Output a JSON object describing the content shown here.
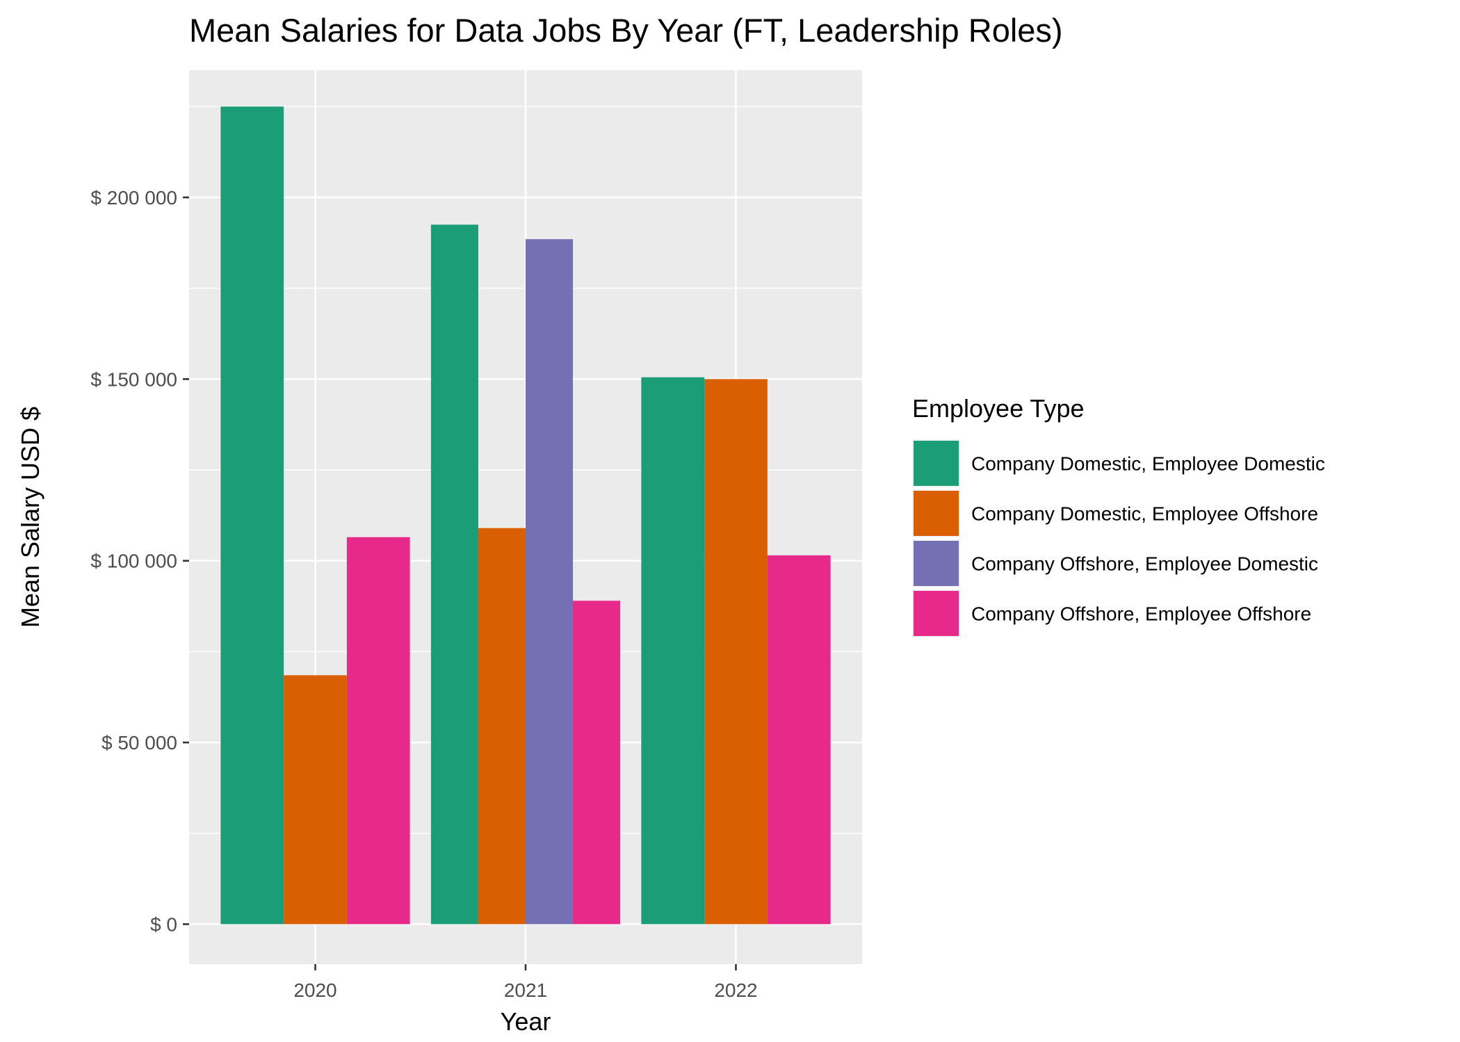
{
  "chart_data": {
    "type": "bar",
    "title": "Mean Salaries for Data Jobs By Year (FT, Leadership Roles)",
    "xlabel": "Year",
    "ylabel": "Mean Salary USD $",
    "ylim": [
      -11000,
      235000
    ],
    "yticks": [
      0,
      50000,
      100000,
      150000,
      200000
    ],
    "ytick_labels": [
      "$ 0",
      "$ 50 000",
      "$ 100 000",
      "$ 150 000",
      "$ 200 000"
    ],
    "categories": [
      "2020",
      "2021",
      "2022"
    ],
    "legend_title": "Employee Type",
    "legend_position": "right",
    "grid": true,
    "panel_background": "#ebebeb",
    "series": [
      {
        "name": "Company Domestic, Employee Domestic",
        "color": "#1b9e77",
        "values": [
          225000,
          192500,
          150500
        ]
      },
      {
        "name": "Company Domestic, Employee Offshore",
        "color": "#d95f02",
        "values": [
          68500,
          109000,
          150000
        ]
      },
      {
        "name": "Company Offshore, Employee Domestic",
        "color": "#7570b3",
        "values": [
          null,
          188500,
          null
        ]
      },
      {
        "name": "Company Offshore, Employee Offshore",
        "color": "#e7298a",
        "values": [
          106500,
          89000,
          101500
        ]
      }
    ]
  }
}
